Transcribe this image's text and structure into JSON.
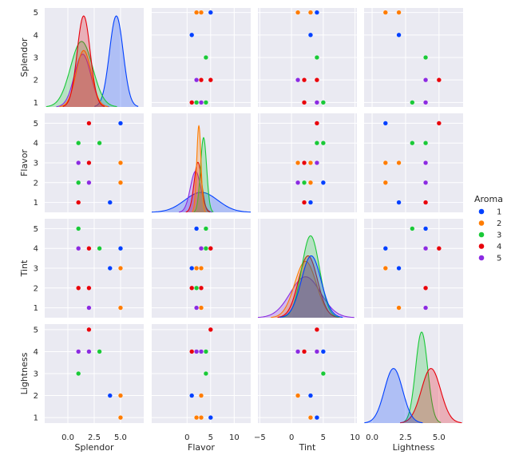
{
  "chart_data": {
    "type": "scatter",
    "kind": "pairplot",
    "variables": [
      "Splendor",
      "Flavor",
      "Tint",
      "Lightness"
    ],
    "hue": "Aroma",
    "legend": {
      "title": "Aroma",
      "placement": "right",
      "levels": [
        "1",
        "2",
        "3",
        "4",
        "5"
      ]
    },
    "colors": {
      "1": "#0040ff",
      "2": "#ff7c00",
      "3": "#1ac938",
      "4": "#e8000b",
      "5": "#8b2be2"
    },
    "axis_limits": {
      "Splendor": [
        -2.2,
        7.2
      ],
      "Flavor": [
        -7.5,
        13.5
      ],
      "Tint": [
        -5.3,
        10.3
      ],
      "Lightness": [
        -0.6,
        6.8
      ]
    },
    "row_limits": {
      "Splendor": [
        0.8,
        5.2
      ],
      "Flavor": [
        0.5,
        5.5
      ],
      "Tint": [
        0.5,
        5.5
      ],
      "Lightness": [
        0.75,
        5.25
      ]
    },
    "axis_ticks": {
      "Splendor": {
        "values": [
          0,
          2.5,
          5
        ],
        "labels": [
          "0.0",
          "2.5",
          "5.0"
        ]
      },
      "Flavor": {
        "values": [
          0,
          5,
          10
        ],
        "labels": [
          "0",
          "5",
          "10"
        ]
      },
      "Tint": {
        "values": [
          -5,
          0,
          5,
          10
        ],
        "labels": [
          "−5",
          "0",
          "5",
          "10"
        ]
      },
      "Lightness": {
        "values": [
          0,
          2.5,
          5
        ],
        "labels": [
          "0.0",
          "2.5",
          "5.0"
        ]
      }
    },
    "row_ticks": [
      1,
      2,
      3,
      4,
      5
    ],
    "row_tick_labels": [
      "1",
      "2",
      "3",
      "4",
      "5"
    ],
    "diagonal": {
      "Splendor": [
        {
          "hue": "1",
          "mean": 4.6,
          "sd": 0.65,
          "peak": 1.0
        },
        {
          "hue": "3",
          "mean": 1.3,
          "sd": 1.05,
          "peak": 0.72
        },
        {
          "hue": "5",
          "mean": 1.4,
          "sd": 0.78,
          "peak": 0.58
        },
        {
          "hue": "2",
          "mean": 1.5,
          "sd": 0.72,
          "peak": 0.62
        },
        {
          "hue": "4",
          "mean": 1.5,
          "sd": 0.62,
          "peak": 1.0
        }
      ],
      "Flavor": [
        {
          "hue": "1",
          "mean": 3.0,
          "sd": 3.5,
          "peak": 0.22
        },
        {
          "hue": "5",
          "mean": 1.8,
          "sd": 1.1,
          "peak": 0.45
        },
        {
          "hue": "4",
          "mean": 2.3,
          "sd": 0.8,
          "peak": 0.55
        },
        {
          "hue": "3",
          "mean": 3.5,
          "sd": 0.65,
          "peak": 0.82
        },
        {
          "hue": "2",
          "mean": 2.5,
          "sd": 0.45,
          "peak": 0.95
        }
      ],
      "Tint": [
        {
          "hue": "5",
          "mean": 2.2,
          "sd": 2.4,
          "peak": 0.45
        },
        {
          "hue": "2",
          "mean": 2.2,
          "sd": 1.7,
          "peak": 0.62
        },
        {
          "hue": "4",
          "mean": 2.6,
          "sd": 1.5,
          "peak": 0.68
        },
        {
          "hue": "3",
          "mean": 3.0,
          "sd": 1.4,
          "peak": 0.9
        },
        {
          "hue": "1",
          "mean": 3.1,
          "sd": 1.55,
          "peak": 0.68
        }
      ],
      "Lightness": [
        {
          "hue": "3",
          "mean": 3.7,
          "sd": 0.45,
          "peak": 1.0
        },
        {
          "hue": "4",
          "mean": 4.4,
          "sd": 0.72,
          "peak": 0.6
        },
        {
          "hue": "1",
          "mean": 1.6,
          "sd": 0.68,
          "peak": 0.6
        }
      ]
    },
    "points": [
      {
        "Splendor": 5,
        "Flavor": 5,
        "Tint": 4,
        "Lightness": 1,
        "Aroma": "1"
      },
      {
        "Splendor": 4,
        "Flavor": 1,
        "Tint": 3,
        "Lightness": 2,
        "Aroma": "1"
      },
      {
        "Splendor": 1,
        "Flavor": 2,
        "Tint": 5,
        "Lightness": 4,
        "Aroma": "1"
      },
      {
        "Splendor": 5,
        "Flavor": 3,
        "Tint": 1,
        "Lightness": 2,
        "Aroma": "2"
      },
      {
        "Splendor": 5,
        "Flavor": 2,
        "Tint": 3,
        "Lightness": 1,
        "Aroma": "2"
      },
      {
        "Splendor": 5,
        "Flavor": 3,
        "Tint": 3,
        "Lightness": 1,
        "Aroma": "2"
      },
      {
        "Splendor": 1,
        "Flavor": 3,
        "Tint": 4,
        "Lightness": 4,
        "Aroma": "3"
      },
      {
        "Splendor": 3,
        "Flavor": 4,
        "Tint": 4,
        "Lightness": 4,
        "Aroma": "3"
      },
      {
        "Splendor": 1,
        "Flavor": 4,
        "Tint": 5,
        "Lightness": 3,
        "Aroma": "3"
      },
      {
        "Splendor": 1,
        "Flavor": 2,
        "Tint": 2,
        "Lightness": 4,
        "Aroma": "3"
      },
      {
        "Splendor": 2,
        "Flavor": 5,
        "Tint": 4,
        "Lightness": 5,
        "Aroma": "4"
      },
      {
        "Splendor": 1,
        "Flavor": 3,
        "Tint": 4,
        "Lightness": 4,
        "Aroma": "4"
      },
      {
        "Splendor": 2,
        "Flavor": 3,
        "Tint": 2,
        "Lightness": 4,
        "Aroma": "4"
      },
      {
        "Splendor": 1,
        "Flavor": 1,
        "Tint": 2,
        "Lightness": 4,
        "Aroma": "4"
      },
      {
        "Splendor": 2,
        "Flavor": 2,
        "Tint": 1,
        "Lightness": 4,
        "Aroma": "5"
      },
      {
        "Splendor": 1,
        "Flavor": 3,
        "Tint": 4,
        "Lightness": 4,
        "Aroma": "5"
      }
    ]
  }
}
